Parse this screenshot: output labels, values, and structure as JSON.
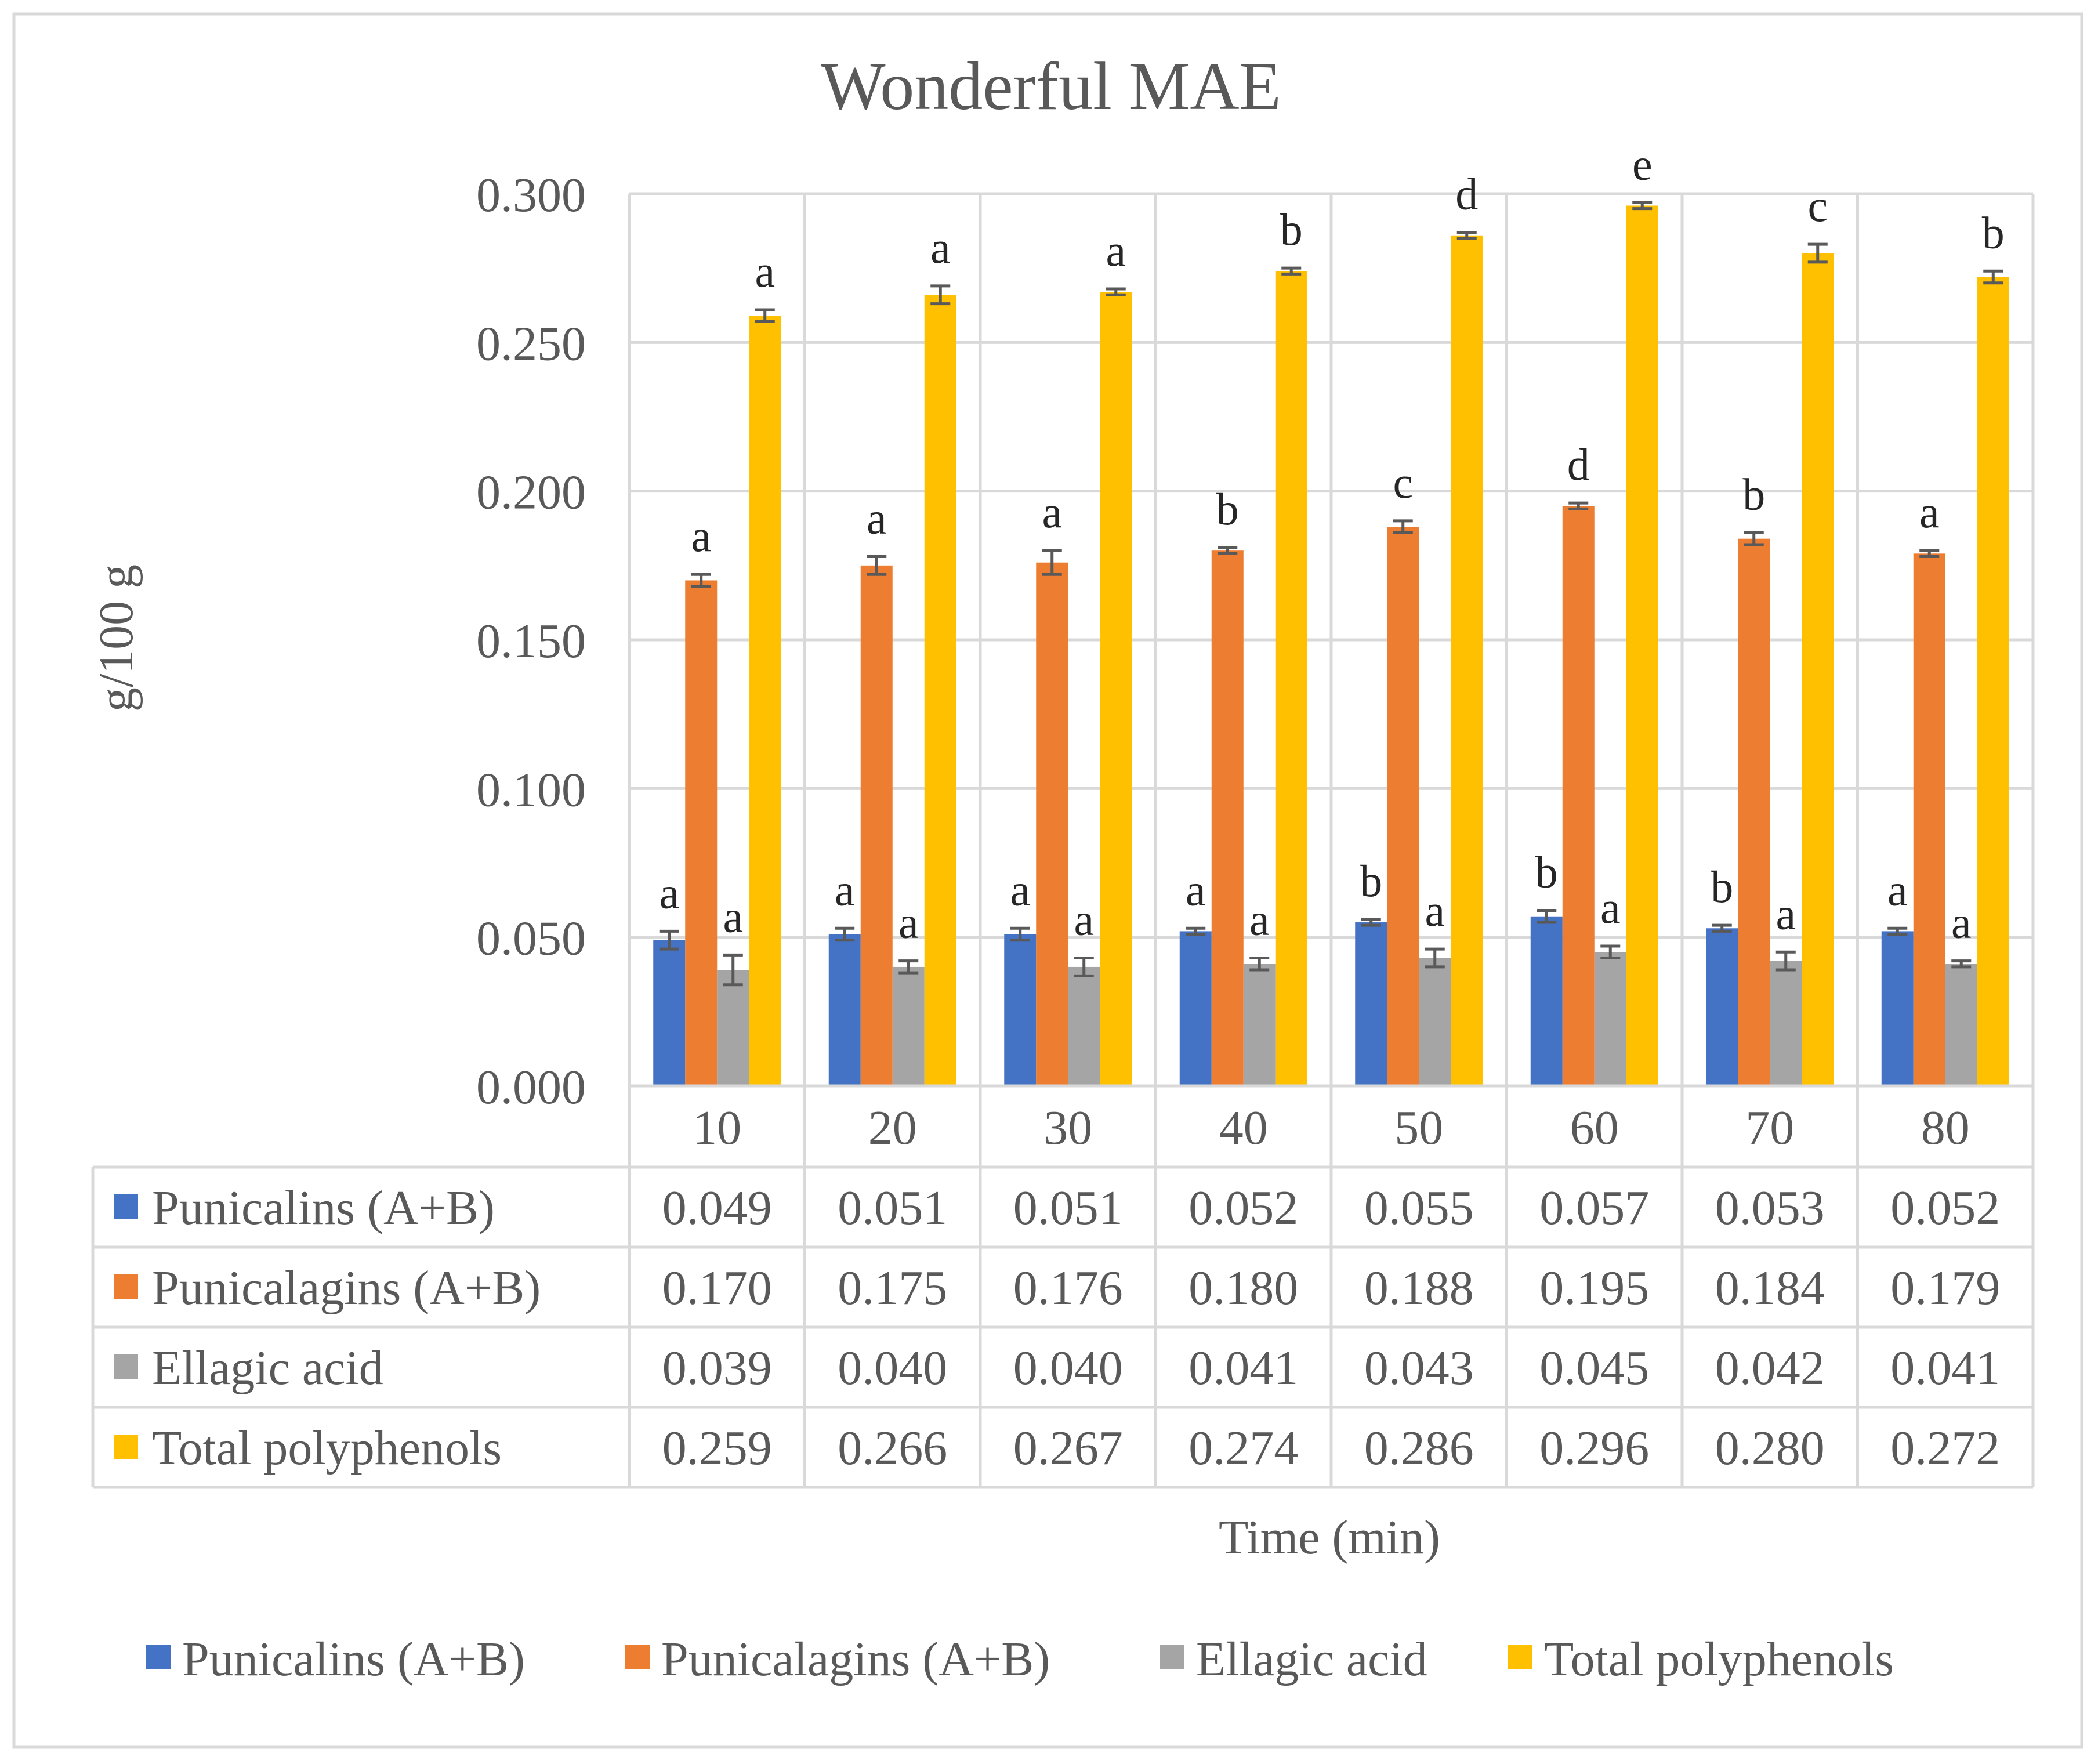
{
  "chart_data": {
    "type": "bar",
    "title": "Wonderful MAE",
    "xlabel": "Time (min)",
    "ylabel": "g/100 g",
    "ylim": [
      0,
      0.3
    ],
    "yticks": [
      "0.000",
      "0.050",
      "0.100",
      "0.150",
      "0.200",
      "0.250",
      "0.300"
    ],
    "categories": [
      "10",
      "20",
      "30",
      "40",
      "50",
      "60",
      "70",
      "80"
    ],
    "grid": true,
    "legend": "bottom",
    "series": [
      {
        "name": "Punicalins (A+B)",
        "color": "#4472C4",
        "values": [
          0.049,
          0.051,
          0.051,
          0.052,
          0.055,
          0.057,
          0.053,
          0.052
        ],
        "labels": [
          "0.049",
          "0.051",
          "0.051",
          "0.052",
          "0.055",
          "0.057",
          "0.053",
          "0.052"
        ],
        "errors": [
          0.003,
          0.002,
          0.002,
          0.001,
          0.001,
          0.002,
          0.001,
          0.001
        ],
        "letters": [
          "a",
          "a",
          "a",
          "a",
          "b",
          "b",
          "b",
          "a"
        ]
      },
      {
        "name": "Punicalagins (A+B)",
        "color": "#ED7D31",
        "values": [
          0.17,
          0.175,
          0.176,
          0.18,
          0.188,
          0.195,
          0.184,
          0.179
        ],
        "labels": [
          "0.170",
          "0.175",
          "0.176",
          "0.180",
          "0.188",
          "0.195",
          "0.184",
          "0.179"
        ],
        "errors": [
          0.002,
          0.003,
          0.004,
          0.001,
          0.002,
          0.001,
          0.002,
          0.001
        ],
        "letters": [
          "a",
          "a",
          "a",
          "b",
          "c",
          "d",
          "b",
          "a"
        ]
      },
      {
        "name": "Ellagic acid",
        "color": "#A5A5A5",
        "values": [
          0.039,
          0.04,
          0.04,
          0.041,
          0.043,
          0.045,
          0.042,
          0.041
        ],
        "labels": [
          "0.039",
          "0.040",
          "0.040",
          "0.041",
          "0.043",
          "0.045",
          "0.042",
          "0.041"
        ],
        "errors": [
          0.005,
          0.002,
          0.003,
          0.002,
          0.003,
          0.002,
          0.003,
          0.001
        ],
        "letters": [
          "a",
          "a",
          "a",
          "a",
          "a",
          "a",
          "a",
          "a"
        ]
      },
      {
        "name": "Total polyphenols",
        "color": "#FFC000",
        "values": [
          0.259,
          0.266,
          0.267,
          0.274,
          0.286,
          0.296,
          0.28,
          0.272
        ],
        "labels": [
          "0.259",
          "0.266",
          "0.267",
          "0.274",
          "0.286",
          "0.296",
          "0.280",
          "0.272"
        ],
        "errors": [
          0.002,
          0.003,
          0.001,
          0.001,
          0.001,
          0.001,
          0.003,
          0.002
        ],
        "letters": [
          "a",
          "a",
          "a",
          "b",
          "d",
          "e",
          "c",
          "b"
        ]
      }
    ]
  }
}
